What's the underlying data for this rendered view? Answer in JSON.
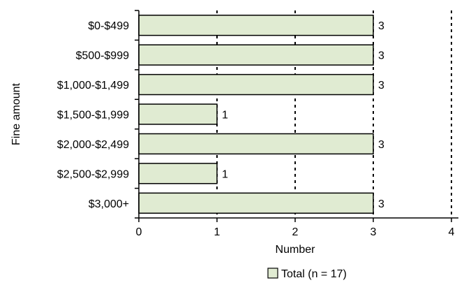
{
  "chart_data": {
    "type": "bar",
    "orientation": "horizontal",
    "categories": [
      "$0-$499",
      "$500-$999",
      "$1,000-$1,499",
      "$1,500-$1,999",
      "$2,000-$2,499",
      "$2,500-$2,999",
      "$3,000+"
    ],
    "series": [
      {
        "name": "Total (n = 17)",
        "values": [
          3,
          3,
          3,
          1,
          3,
          1,
          3
        ]
      }
    ],
    "xlabel": "Number",
    "ylabel": "Fine amount",
    "xlim": [
      0,
      4
    ],
    "x_ticks": [
      "0",
      "1",
      "2",
      "3",
      "4"
    ],
    "grid": "vertical dashed at major ticks",
    "legend_position": "bottom",
    "bar_color": "#e0ebd2",
    "bar_edge_color": "#000000",
    "data_labels": [
      "3",
      "3",
      "3",
      "1",
      "3",
      "1",
      "3"
    ]
  }
}
